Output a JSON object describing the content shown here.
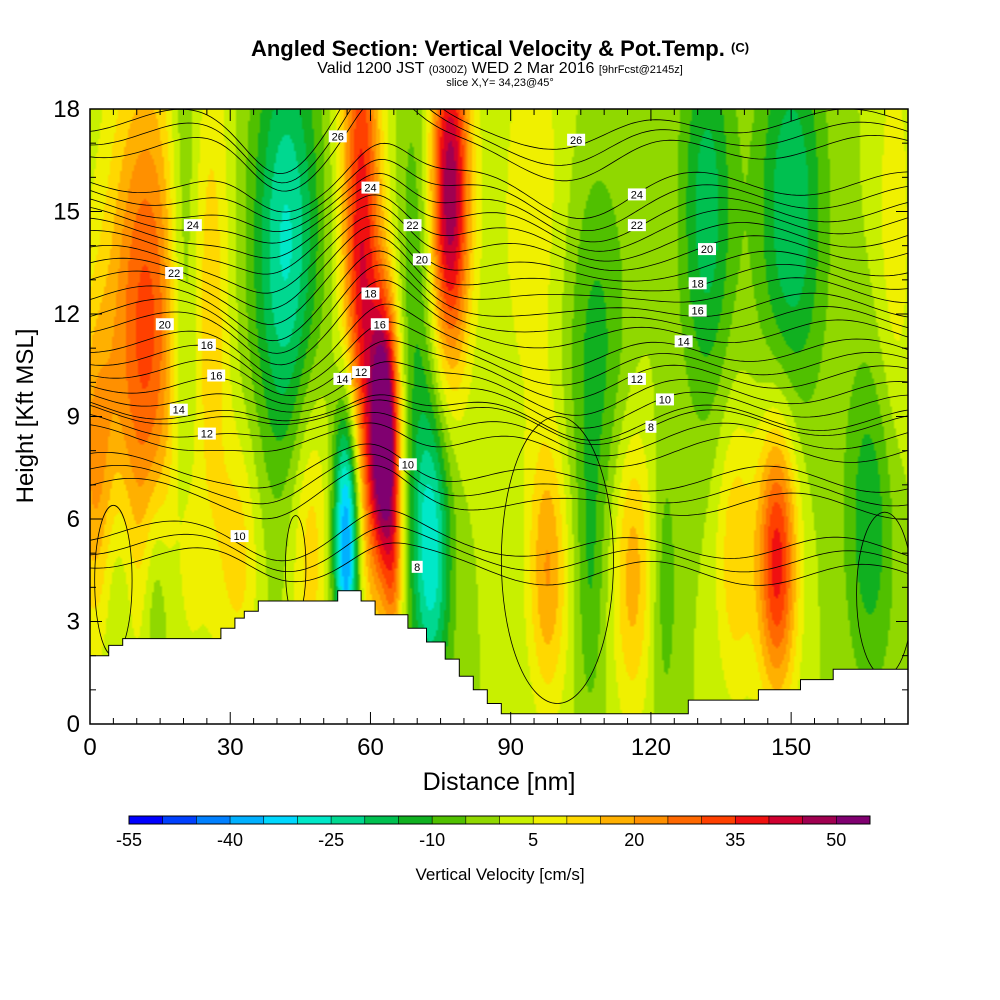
{
  "header": {
    "title": "Angled Section: Vertical Velocity & Pot.Temp.",
    "title_tag": "(C)",
    "valid_prefix": "Valid 1200 JST",
    "valid_utc": "(0300Z)",
    "valid_date": "WED 2 Mar 2016",
    "forecast": "[9hrFcst@2145z]",
    "slice": "slice X,Y= 34,23@45°"
  },
  "chart_data": {
    "type": "heatmap",
    "xlabel": "Distance [nm]",
    "ylabel": "Height [Kft MSL]",
    "xlim": [
      0,
      175
    ],
    "ylim": [
      0,
      18
    ],
    "xticks": [
      0,
      30,
      60,
      90,
      120,
      150
    ],
    "yticks": [
      0,
      3,
      6,
      9,
      12,
      15,
      18
    ],
    "colorbar": {
      "label": "Vertical Velocity [cm/s]",
      "min": -55,
      "max": 55,
      "step": 5,
      "ticks": [
        -55,
        -40,
        -25,
        -10,
        5,
        20,
        35,
        50
      ],
      "colors": [
        "#0000ff",
        "#0040ff",
        "#0080ff",
        "#00b0ff",
        "#00d8ff",
        "#00e8c8",
        "#00d890",
        "#00c050",
        "#10b020",
        "#50c000",
        "#90d800",
        "#c8f000",
        "#f0f000",
        "#ffd800",
        "#ffb000",
        "#ff9000",
        "#ff6800",
        "#ff4000",
        "#f01010",
        "#d00030",
        "#a00050",
        "#800070"
      ]
    },
    "velocity_features": [
      {
        "kind": "updraft",
        "x": 12,
        "y": 11.5,
        "sx": 6,
        "sy": 5.5,
        "value": 32
      },
      {
        "kind": "updraft",
        "x": 1,
        "y": 7.5,
        "sx": 3,
        "sy": 3.5,
        "value": 18
      },
      {
        "kind": "updraft",
        "x": 26,
        "y": 12,
        "sx": 3,
        "sy": 6,
        "value": 12
      },
      {
        "kind": "downdraft",
        "x": 20,
        "y": 12,
        "sx": 2.5,
        "sy": 7,
        "value": -14
      },
      {
        "kind": "updraft",
        "x": 21,
        "y": 4.5,
        "sx": 2,
        "sy": 2.5,
        "value": 8
      },
      {
        "kind": "updraft",
        "x": 32,
        "y": 5,
        "sx": 3,
        "sy": 2.5,
        "value": 12
      },
      {
        "kind": "downdraft",
        "x": 14,
        "y": 4,
        "sx": 2,
        "sy": 2.5,
        "value": -12
      },
      {
        "kind": "downdraft",
        "x": 6,
        "y": 4.5,
        "sx": 2.5,
        "sy": 2.5,
        "value": -8
      },
      {
        "kind": "downdraft",
        "x": 42,
        "y": 14,
        "sx": 5,
        "sy": 4.5,
        "value": -26
      },
      {
        "kind": "updraft",
        "x": 47,
        "y": 5.5,
        "sx": 3,
        "sy": 3.5,
        "value": 14
      },
      {
        "kind": "downdraft",
        "x": 55,
        "y": 5.5,
        "sx": 2,
        "sy": 3,
        "value": -50
      },
      {
        "kind": "updraft",
        "x": 58,
        "y": 13.5,
        "sx": 3,
        "sy": 6.5,
        "value": 40
      },
      {
        "kind": "updraft",
        "x": 63,
        "y": 8.5,
        "sx": 2.2,
        "sy": 2.8,
        "value": 60
      },
      {
        "kind": "updraft",
        "x": 65,
        "y": 4.5,
        "sx": 1.5,
        "sy": 2,
        "value": 18
      },
      {
        "kind": "downdraft",
        "x": 70,
        "y": 12.5,
        "sx": 3,
        "sy": 5,
        "value": -10
      },
      {
        "kind": "updraft",
        "x": 77,
        "y": 15.5,
        "sx": 3,
        "sy": 3.5,
        "value": 50
      },
      {
        "kind": "downdraft",
        "x": 73,
        "y": 5,
        "sx": 3,
        "sy": 3,
        "value": -28
      },
      {
        "kind": "updraft",
        "x": 95,
        "y": 15,
        "sx": 6,
        "sy": 5,
        "value": 8
      },
      {
        "kind": "downdraft",
        "x": 108,
        "y": 11,
        "sx": 5,
        "sy": 4,
        "value": -12
      },
      {
        "kind": "updraft",
        "x": 98,
        "y": 4.5,
        "sx": 3,
        "sy": 2.8,
        "value": 20
      },
      {
        "kind": "updraft",
        "x": 116,
        "y": 4.5,
        "sx": 3,
        "sy": 3,
        "value": 18
      },
      {
        "kind": "downdraft",
        "x": 107,
        "y": 4,
        "sx": 2,
        "sy": 3,
        "value": -8
      },
      {
        "kind": "downdraft",
        "x": 123,
        "y": 4,
        "sx": 2,
        "sy": 3,
        "value": -8
      },
      {
        "kind": "downdraft",
        "x": 132,
        "y": 15,
        "sx": 4,
        "sy": 4,
        "value": -18
      },
      {
        "kind": "downdraft",
        "x": 150,
        "y": 15,
        "sx": 5,
        "sy": 4,
        "value": -20
      },
      {
        "kind": "updraft",
        "x": 147,
        "y": 4.8,
        "sx": 3,
        "sy": 2.8,
        "value": 38
      },
      {
        "kind": "updraft",
        "x": 138,
        "y": 5,
        "sx": 3,
        "sy": 3,
        "value": 14
      },
      {
        "kind": "downdraft",
        "x": 167,
        "y": 6,
        "sx": 4,
        "sy": 3.5,
        "value": -14
      },
      {
        "kind": "updraft",
        "x": 172,
        "y": 14,
        "sx": 3,
        "sy": 5,
        "value": 8
      }
    ],
    "terrain": [
      [
        0,
        2.0
      ],
      [
        4,
        2.0
      ],
      [
        4,
        2.3
      ],
      [
        7,
        2.3
      ],
      [
        7,
        2.5
      ],
      [
        28,
        2.5
      ],
      [
        28,
        2.8
      ],
      [
        31,
        2.8
      ],
      [
        31,
        3.1
      ],
      [
        33,
        3.1
      ],
      [
        33,
        3.3
      ],
      [
        36,
        3.3
      ],
      [
        36,
        3.6
      ],
      [
        53,
        3.6
      ],
      [
        53,
        3.9
      ],
      [
        58,
        3.9
      ],
      [
        58,
        3.6
      ],
      [
        61,
        3.6
      ],
      [
        61,
        3.2
      ],
      [
        68,
        3.2
      ],
      [
        68,
        2.8
      ],
      [
        72,
        2.8
      ],
      [
        72,
        2.4
      ],
      [
        76,
        2.4
      ],
      [
        76,
        1.9
      ],
      [
        79,
        1.9
      ],
      [
        79,
        1.4
      ],
      [
        82,
        1.4
      ],
      [
        82,
        1.0
      ],
      [
        85,
        1.0
      ],
      [
        85,
        0.6
      ],
      [
        88,
        0.6
      ],
      [
        88,
        0.3
      ],
      [
        128,
        0.3
      ],
      [
        128,
        0.7
      ],
      [
        143,
        0.7
      ],
      [
        143,
        1.0
      ],
      [
        152,
        1.0
      ],
      [
        152,
        1.3
      ],
      [
        159,
        1.3
      ],
      [
        159,
        1.6
      ],
      [
        175,
        1.6
      ]
    ],
    "isentropes": [
      {
        "theta": 8,
        "base": 4.6
      },
      {
        "theta": 10,
        "base": 6.6
      },
      {
        "theta": 12,
        "base": 8.2
      },
      {
        "theta": 14,
        "base": 9.1
      },
      {
        "theta": 16,
        "base": 10.3
      },
      {
        "theta": 18,
        "base": 11.6
      },
      {
        "theta": 20,
        "base": 12.8
      },
      {
        "theta": 22,
        "base": 14.0
      },
      {
        "theta": 24,
        "base": 15.1
      },
      {
        "theta": 26,
        "base": 16.9
      }
    ],
    "contour_labels": [
      {
        "text": "26",
        "x": 53,
        "y": 17.2
      },
      {
        "text": "24",
        "x": 60,
        "y": 15.7
      },
      {
        "text": "22",
        "x": 69,
        "y": 14.6
      },
      {
        "text": "20",
        "x": 71,
        "y": 13.6
      },
      {
        "text": "18",
        "x": 60,
        "y": 12.6
      },
      {
        "text": "16",
        "x": 62,
        "y": 11.7
      },
      {
        "text": "14",
        "x": 54,
        "y": 10.1
      },
      {
        "text": "12",
        "x": 58,
        "y": 10.3
      },
      {
        "text": "10",
        "x": 68,
        "y": 7.6
      },
      {
        "text": "8",
        "x": 70,
        "y": 4.6
      },
      {
        "text": "24",
        "x": 22,
        "y": 14.6
      },
      {
        "text": "22",
        "x": 18,
        "y": 13.2
      },
      {
        "text": "20",
        "x": 16,
        "y": 11.7
      },
      {
        "text": "16",
        "x": 25,
        "y": 11.1
      },
      {
        "text": "16",
        "x": 27,
        "y": 10.2
      },
      {
        "text": "14",
        "x": 19,
        "y": 9.2
      },
      {
        "text": "12",
        "x": 25,
        "y": 8.5
      },
      {
        "text": "10",
        "x": 32,
        "y": 5.5
      },
      {
        "text": "26",
        "x": 104,
        "y": 17.1
      },
      {
        "text": "24",
        "x": 117,
        "y": 15.5
      },
      {
        "text": "22",
        "x": 117,
        "y": 14.6
      },
      {
        "text": "20",
        "x": 132,
        "y": 13.9
      },
      {
        "text": "18",
        "x": 130,
        "y": 12.9
      },
      {
        "text": "16",
        "x": 130,
        "y": 12.1
      },
      {
        "text": "14",
        "x": 127,
        "y": 11.2
      },
      {
        "text": "12",
        "x": 117,
        "y": 10.1
      },
      {
        "text": "10",
        "x": 123,
        "y": 9.5
      },
      {
        "text": "8",
        "x": 120,
        "y": 8.7
      }
    ]
  }
}
